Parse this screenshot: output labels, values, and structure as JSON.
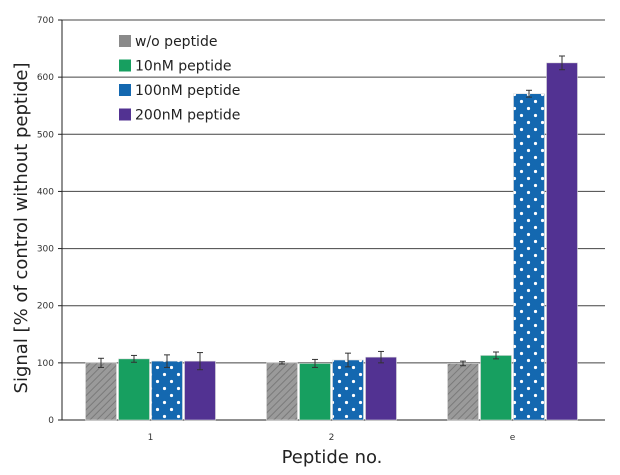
{
  "chart_data": {
    "type": "bar",
    "title": "",
    "xlabel": "Peptide no.",
    "ylabel": "Signal [% of control without peptide]",
    "ylim": [
      0,
      700
    ],
    "yticks": [
      "0",
      "100",
      "200",
      "300",
      "400",
      "500",
      "600",
      "700"
    ],
    "grid": true,
    "legend_position": "top-left",
    "categories": [
      "1",
      "2",
      "e"
    ],
    "series": [
      {
        "name": "w/o peptide",
        "color": "#8a8a8a",
        "pattern": "hatch",
        "values": [
          100,
          100,
          99
        ],
        "errors": [
          8,
          2,
          4
        ]
      },
      {
        "name": "10nM peptide",
        "color": "#179f60",
        "pattern": "solid",
        "values": [
          107,
          99,
          113
        ],
        "errors": [
          6,
          7,
          6
        ]
      },
      {
        "name": "100nM peptide",
        "color": "#1468b0",
        "pattern": "dots",
        "values": [
          103,
          105,
          571
        ],
        "errors": [
          11,
          12,
          6
        ]
      },
      {
        "name": "200nM peptide",
        "color": "#523292",
        "pattern": "solid",
        "values": [
          103,
          110,
          625
        ],
        "errors": [
          15,
          10,
          12
        ]
      }
    ]
  }
}
